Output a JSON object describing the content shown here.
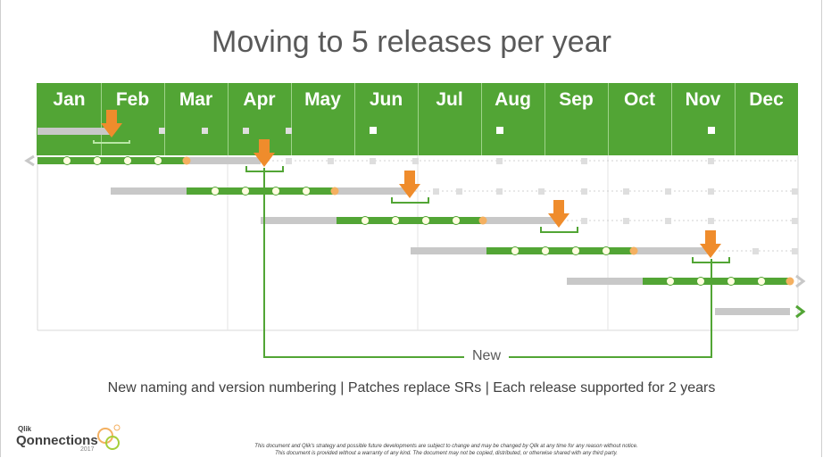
{
  "title": "Moving to 5 releases per year",
  "months": [
    "Jan",
    "Feb",
    "Mar",
    "Apr",
    "May",
    "Jun",
    "Jul",
    "Aug",
    "Sep",
    "Oct",
    "Nov",
    "Dec"
  ],
  "new_label": "New",
  "subtitle": "New naming and version numbering  | Patches replace SRs |  Each release supported for 2 years",
  "logo": {
    "small": "Qlik",
    "main": "Qonnections",
    "year": "2017"
  },
  "disclaimer": [
    "This document and Qlik's strategy and possible future developments are subject to change and may be changed by Qlik at any time for any reason without notice.",
    "This document is provided without a warranty of any kind. The document may not be copied, distributed, or otherwise shared with any third party."
  ],
  "colors": {
    "green": "#52a535",
    "gray_bar": "#c8c8c8",
    "orange": "#ef8c2c",
    "dot_fill": "#fffde0",
    "text": "#595959"
  }
}
